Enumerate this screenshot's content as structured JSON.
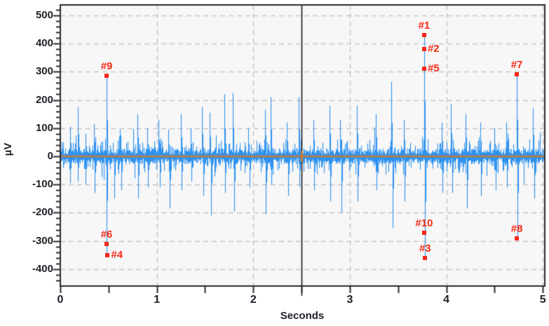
{
  "chart_data": {
    "type": "line",
    "title": "",
    "xlabel": "Seconds",
    "ylabel": "µV",
    "xlim": [
      0,
      5.02
    ],
    "ylim": [
      -460,
      537
    ],
    "x_major_ticks": [
      0,
      1,
      2,
      3,
      4,
      5
    ],
    "x_minor_step": 0.5,
    "y_major_ticks": [
      500,
      400,
      300,
      200,
      100,
      0,
      -100,
      -200,
      -300,
      -400
    ],
    "y_minor_step": 20,
    "grid": {
      "show": true,
      "x_lines": [
        1,
        2,
        3,
        4,
        5
      ],
      "y_lines": [
        500,
        400,
        300,
        200,
        100,
        -100,
        -200,
        -300,
        -400
      ]
    },
    "cursor": {
      "x": 2.5,
      "y": 0
    },
    "baseline_uv": 0,
    "colors": {
      "signal": "#2F93EF",
      "baseline": "#C57B35",
      "cursor": "#1C1C1C",
      "axis": "#2B2B2B",
      "grid": "#C6C6C6",
      "plot_bg": "#F7F7F7",
      "page_bg": "#FFFFFF",
      "marker": "#F8271A",
      "marker_text": "#F92B16",
      "tick_text": "#1E2128"
    },
    "markers": [
      {
        "label": "#1",
        "t": 3.77,
        "uv": 430,
        "label_pos": "above"
      },
      {
        "label": "#2",
        "t": 3.77,
        "uv": 380,
        "label_pos": "right"
      },
      {
        "label": "#3",
        "t": 3.78,
        "uv": -360,
        "label_pos": "above"
      },
      {
        "label": "#4",
        "t": 0.49,
        "uv": -350,
        "label_pos": "right"
      },
      {
        "label": "#5",
        "t": 3.77,
        "uv": 310,
        "label_pos": "right"
      },
      {
        "label": "#6",
        "t": 0.48,
        "uv": -310,
        "label_pos": "above"
      },
      {
        "label": "#7",
        "t": 4.73,
        "uv": 290,
        "label_pos": "above"
      },
      {
        "label": "#8",
        "t": 4.73,
        "uv": -290,
        "label_pos": "above"
      },
      {
        "label": "#9",
        "t": 0.48,
        "uv": 285,
        "label_pos": "above"
      },
      {
        "label": "#10",
        "t": 3.77,
        "uv": -270,
        "label_pos": "above"
      }
    ],
    "signal": {
      "kind": "emg-noise-envelope",
      "seed": 1337,
      "noise_base_uv": 6,
      "noise_var_uv": 22,
      "burst_prob": 0.22,
      "burst_extra_uv": 42,
      "big_prob": 0.05,
      "big_extra_uv": 70,
      "spikes": [
        [
          0.1,
          105
        ],
        [
          0.105,
          -95
        ],
        [
          0.18,
          175
        ],
        [
          0.185,
          -90
        ],
        [
          0.26,
          80
        ],
        [
          0.265,
          -100
        ],
        [
          0.35,
          115
        ],
        [
          0.355,
          -130
        ],
        [
          0.48,
          285
        ],
        [
          0.483,
          -350
        ],
        [
          0.56,
          -150
        ],
        [
          0.62,
          95
        ],
        [
          0.63,
          -120
        ],
        [
          0.8,
          150
        ],
        [
          0.805,
          -150
        ],
        [
          0.9,
          100
        ],
        [
          0.91,
          -110
        ],
        [
          1.02,
          130
        ],
        [
          1.03,
          -110
        ],
        [
          1.12,
          95
        ],
        [
          1.13,
          -185
        ],
        [
          1.25,
          150
        ],
        [
          1.26,
          -120
        ],
        [
          1.35,
          100
        ],
        [
          1.36,
          -90
        ],
        [
          1.47,
          175
        ],
        [
          1.48,
          -140
        ],
        [
          1.55,
          155
        ],
        [
          1.56,
          -210
        ],
        [
          1.7,
          220
        ],
        [
          1.71,
          -130
        ],
        [
          1.79,
          225
        ],
        [
          1.8,
          -195
        ],
        [
          1.95,
          100
        ],
        [
          1.96,
          -110
        ],
        [
          2.12,
          165
        ],
        [
          2.13,
          -205
        ],
        [
          2.18,
          210
        ],
        [
          2.19,
          -100
        ],
        [
          2.35,
          120
        ],
        [
          2.36,
          -140
        ],
        [
          2.47,
          210
        ],
        [
          2.48,
          -110
        ],
        [
          2.62,
          130
        ],
        [
          2.63,
          -120
        ],
        [
          2.79,
          180
        ],
        [
          2.8,
          -160
        ],
        [
          2.9,
          130
        ],
        [
          2.91,
          -200
        ],
        [
          3.07,
          180
        ],
        [
          3.08,
          -160
        ],
        [
          3.27,
          150
        ],
        [
          3.28,
          -120
        ],
        [
          3.43,
          265
        ],
        [
          3.44,
          -255
        ],
        [
          3.56,
          130
        ],
        [
          3.57,
          -160
        ],
        [
          3.77,
          430
        ],
        [
          3.775,
          -360
        ],
        [
          3.95,
          120
        ],
        [
          3.96,
          -130
        ],
        [
          4.05,
          185
        ],
        [
          4.06,
          -130
        ],
        [
          4.2,
          150
        ],
        [
          4.21,
          -185
        ],
        [
          4.35,
          120
        ],
        [
          4.36,
          -140
        ],
        [
          4.5,
          100
        ],
        [
          4.51,
          -120
        ],
        [
          4.62,
          120
        ],
        [
          4.63,
          -110
        ],
        [
          4.73,
          290
        ],
        [
          4.735,
          -290
        ],
        [
          4.9,
          170
        ],
        [
          4.91,
          -150
        ]
      ]
    }
  }
}
